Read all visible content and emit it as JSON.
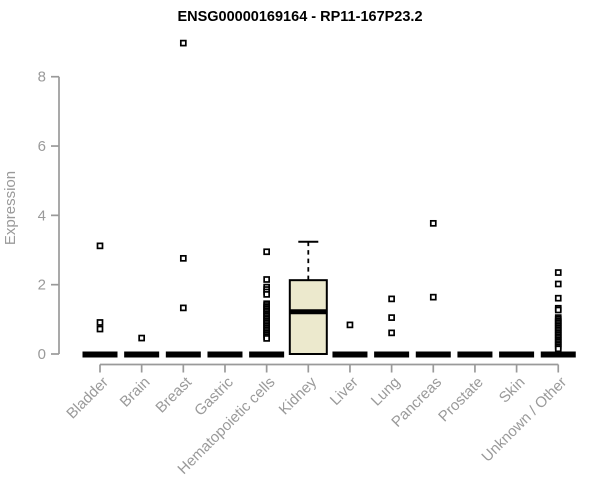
{
  "chart_data": {
    "type": "box",
    "title": "ENSG00000169164 - RP11-167P23.2",
    "xlabel": "",
    "ylabel": "Expression",
    "ylim": [
      0,
      9.2
    ],
    "yticks": [
      0,
      2,
      4,
      6,
      8
    ],
    "yaxis_drawn_span": [
      0,
      8
    ],
    "grid": false,
    "legend": "none",
    "marker": "open-square",
    "categories": [
      "Bladder",
      "Brain",
      "Breast",
      "Gastric",
      "Hematopoietic cells",
      "Kidney",
      "Liver",
      "Lung",
      "Pancreas",
      "Prostate",
      "Skin",
      "Unknown / Other"
    ],
    "boxes": [
      {
        "category": "Bladder",
        "q1": 0,
        "median": 0,
        "q3": 0,
        "whisker_low": 0,
        "whisker_high": 0,
        "outliers": [
          3.12,
          0.91,
          0.72
        ]
      },
      {
        "category": "Brain",
        "q1": 0,
        "median": 0,
        "q3": 0,
        "whisker_low": 0,
        "whisker_high": 0,
        "outliers": [
          0.46
        ]
      },
      {
        "category": "Breast",
        "q1": 0,
        "median": 0,
        "q3": 0,
        "whisker_low": 0,
        "whisker_high": 0,
        "outliers": [
          8.97,
          2.76,
          1.33
        ]
      },
      {
        "category": "Gastric",
        "q1": 0,
        "median": 0,
        "q3": 0,
        "whisker_low": 0,
        "whisker_high": 0,
        "outliers": []
      },
      {
        "category": "Hematopoietic cells",
        "q1": 0,
        "median": 0,
        "q3": 0,
        "whisker_low": 0,
        "whisker_high": 0,
        "outliers": [
          2.95,
          2.15,
          1.93,
          1.86,
          1.79,
          1.72,
          1.45,
          1.4,
          1.35,
          1.3,
          1.25,
          1.2,
          1.15,
          1.1,
          1.05,
          1.0,
          0.95,
          0.9,
          0.85,
          0.8,
          0.75,
          0.7,
          0.65,
          0.6,
          0.55,
          0.5,
          0.45
        ]
      },
      {
        "category": "Kidney",
        "q1": 0,
        "median": 1.22,
        "q3": 2.13,
        "whisker_low": 0,
        "whisker_high": 3.24,
        "outliers": []
      },
      {
        "category": "Liver",
        "q1": 0,
        "median": 0,
        "q3": 0,
        "whisker_low": 0,
        "whisker_high": 0,
        "outliers": [
          0.84
        ]
      },
      {
        "category": "Lung",
        "q1": 0,
        "median": 0,
        "q3": 0,
        "whisker_low": 0,
        "whisker_high": 0,
        "outliers": [
          1.59,
          1.05,
          0.61
        ]
      },
      {
        "category": "Pancreas",
        "q1": 0,
        "median": 0,
        "q3": 0,
        "whisker_low": 0,
        "whisker_high": 0,
        "outliers": [
          3.77,
          1.64
        ]
      },
      {
        "category": "Prostate",
        "q1": 0,
        "median": 0,
        "q3": 0,
        "whisker_low": 0,
        "whisker_high": 0,
        "outliers": []
      },
      {
        "category": "Skin",
        "q1": 0,
        "median": 0,
        "q3": 0,
        "whisker_low": 0,
        "whisker_high": 0,
        "outliers": []
      },
      {
        "category": "Unknown / Other",
        "q1": 0,
        "median": 0,
        "q3": 0,
        "whisker_low": 0,
        "whisker_high": 0,
        "outliers": [
          2.35,
          2.02,
          1.61,
          1.32,
          1.27,
          1.05,
          1.0,
          0.95,
          0.9,
          0.85,
          0.8,
          0.75,
          0.7,
          0.65,
          0.6,
          0.55,
          0.5,
          0.45,
          0.4,
          0.35,
          0.3,
          0.25,
          0.2,
          0.15
        ]
      }
    ],
    "colors": {
      "box_fill": "#ece9cd",
      "box_border": "#000000",
      "outlier": "#000000",
      "axis": "#9a9a9a",
      "tick_text": "#9a9a9a",
      "title_text": "#000000",
      "background": "#ffffff"
    }
  }
}
